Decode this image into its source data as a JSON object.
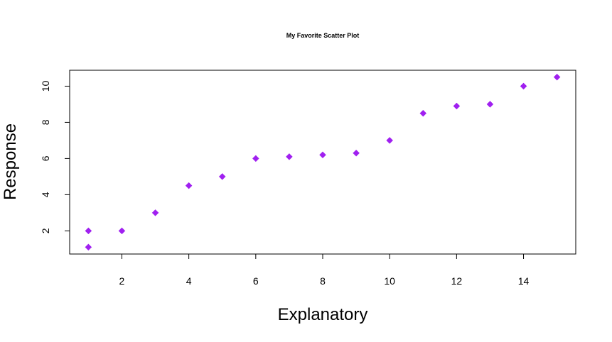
{
  "chart_data": {
    "type": "scatter",
    "title": "My Favorite Scatter Plot",
    "xlabel": "Explanatory",
    "ylabel": "Response",
    "x": [
      1,
      1,
      2,
      3,
      4,
      5,
      6,
      7,
      8,
      9,
      10,
      11,
      12,
      13,
      14,
      15
    ],
    "y": [
      1.1,
      2.0,
      2.0,
      3.0,
      4.5,
      5.0,
      6.0,
      6.1,
      6.2,
      6.3,
      7.0,
      8.5,
      8.9,
      9.0,
      10.0,
      10.5
    ],
    "xlim": [
      0.44,
      15.56
    ],
    "ylim": [
      0.72,
      10.88
    ],
    "xticks": [
      2,
      4,
      6,
      8,
      10,
      12,
      14
    ],
    "yticks": [
      2,
      4,
      6,
      8,
      10
    ],
    "marker": "diamond",
    "point_color": "#a020f0",
    "grid": false,
    "legend": "none"
  }
}
